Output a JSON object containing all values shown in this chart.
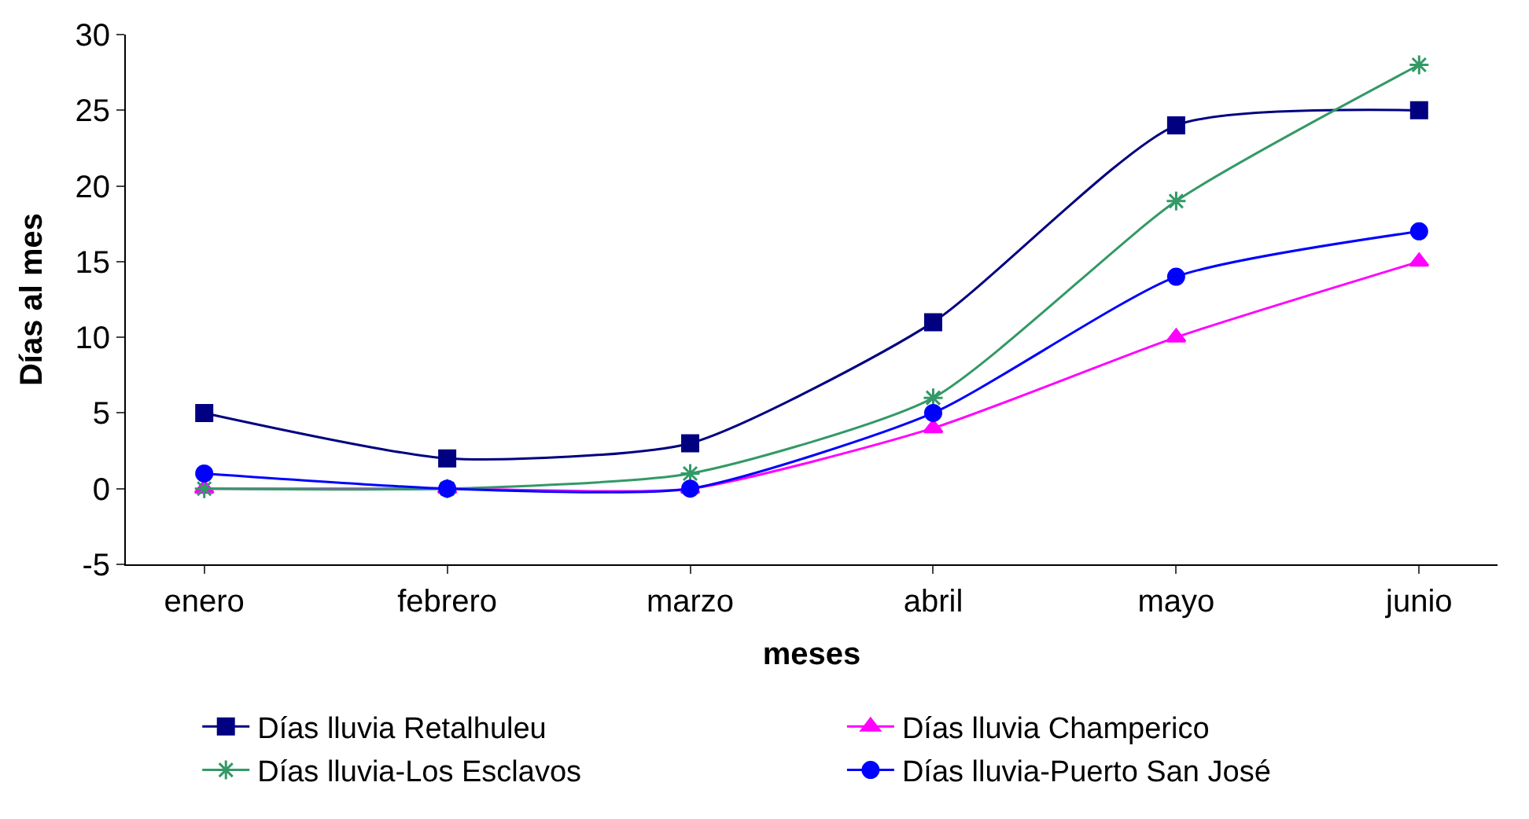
{
  "chart_data": {
    "type": "line",
    "xlabel": "meses",
    "ylabel": "Días al mes",
    "categories": [
      "enero",
      "febrero",
      "marzo",
      "abril",
      "mayo",
      "junio"
    ],
    "series": [
      {
        "name": "Días lluvia Retalhuleu",
        "color": "#000080",
        "marker": "square",
        "values": [
          5,
          2,
          3,
          11,
          24,
          25
        ]
      },
      {
        "name": "Días lluvia Champerico",
        "color": "#ff00ff",
        "marker": "triangle",
        "values": [
          0,
          0,
          0,
          4,
          10,
          15
        ]
      },
      {
        "name": "Días lluvia-Los Esclavos",
        "color": "#339966",
        "marker": "cross",
        "values": [
          0,
          0,
          1,
          6,
          19,
          28
        ]
      },
      {
        "name": "Días lluvia-Puerto San José",
        "color": "#0000ff",
        "marker": "circle",
        "values": [
          1,
          0,
          0,
          5,
          14,
          17
        ]
      }
    ],
    "ylim": [
      -5,
      30
    ],
    "yticks": [
      -5,
      0,
      5,
      10,
      15,
      20,
      25,
      30
    ],
    "grid": false,
    "legend": "bottom",
    "line_style": "solid"
  }
}
